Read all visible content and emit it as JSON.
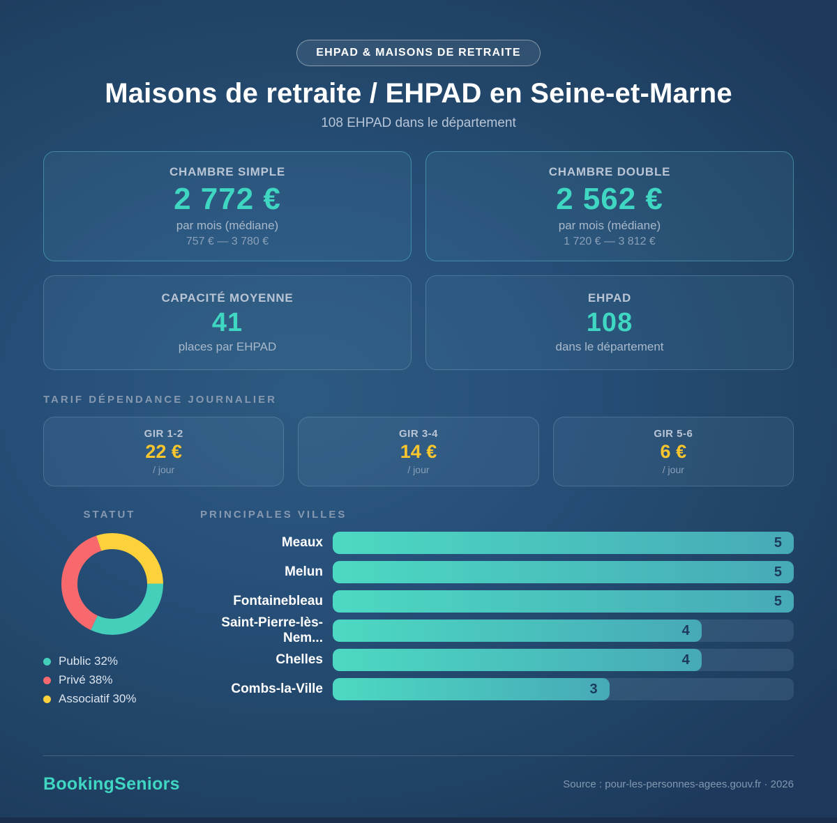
{
  "badge": "EHPAD & MAISONS DE RETRAITE",
  "title": "Maisons de retraite / EHPAD en Seine-et-Marne",
  "subtitle": "108 EHPAD dans le département",
  "stat_cards": [
    {
      "label": "CHAMBRE SIMPLE",
      "value": "2 772 €",
      "sub": "par mois (médiane)",
      "range": "757 € — 3 780 €"
    },
    {
      "label": "CHAMBRE DOUBLE",
      "value": "2 562 €",
      "sub": "par mois (médiane)",
      "range": "1 720 € — 3 812 €"
    },
    {
      "label": "CAPACITÉ MOYENNE",
      "value": "41",
      "sub": "places par EHPAD"
    },
    {
      "label": "EHPAD",
      "value": "108",
      "sub": "dans le département"
    }
  ],
  "tarif_section": {
    "title": "TARIF DÉPENDANCE JOURNALIER",
    "cards": [
      {
        "label": "GIR 1-2",
        "value": "22 €",
        "unit": "/ jour"
      },
      {
        "label": "GIR 3-4",
        "value": "14 €",
        "unit": "/ jour"
      },
      {
        "label": "GIR 5-6",
        "value": "6 €",
        "unit": "/ jour"
      }
    ]
  },
  "chart_data": [
    {
      "type": "pie",
      "title": "STATUT",
      "donut": true,
      "labels": [
        "Public",
        "Privé",
        "Associatif"
      ],
      "values": [
        32,
        38,
        30
      ],
      "colors": [
        "#43cfb9",
        "#f8696e",
        "#fcd13b"
      ],
      "legend": [
        "Public 32%",
        "Privé 38%",
        "Associatif 30%"
      ],
      "legend_position": "bottom-left",
      "start_angle": "3-oclock-clockwise"
    },
    {
      "type": "bar",
      "title": "PRINCIPALES VILLES",
      "orientation": "horizontal",
      "categories": [
        "Meaux",
        "Melun",
        "Fontainebleau",
        "Saint-Pierre-lès-Nem...",
        "Chelles",
        "Combs-la-Ville"
      ],
      "values": [
        5,
        5,
        5,
        4,
        4,
        3
      ],
      "xlim": [
        0,
        5
      ],
      "grid": false,
      "bar_color_gradient": [
        "#4cd9c2",
        "#47a9b7"
      ]
    }
  ],
  "footer": {
    "brand": "BookingSeniors",
    "source": "Source : pour-les-personnes-agees.gouv.fr · 2026"
  },
  "colors": {
    "accent_teal": "#3fd6c2",
    "accent_yellow": "#f9c62e",
    "bar_value_navy": "#1d3a5c",
    "background_center": "#2d5a80",
    "background_edge": "#1d3a5c"
  }
}
